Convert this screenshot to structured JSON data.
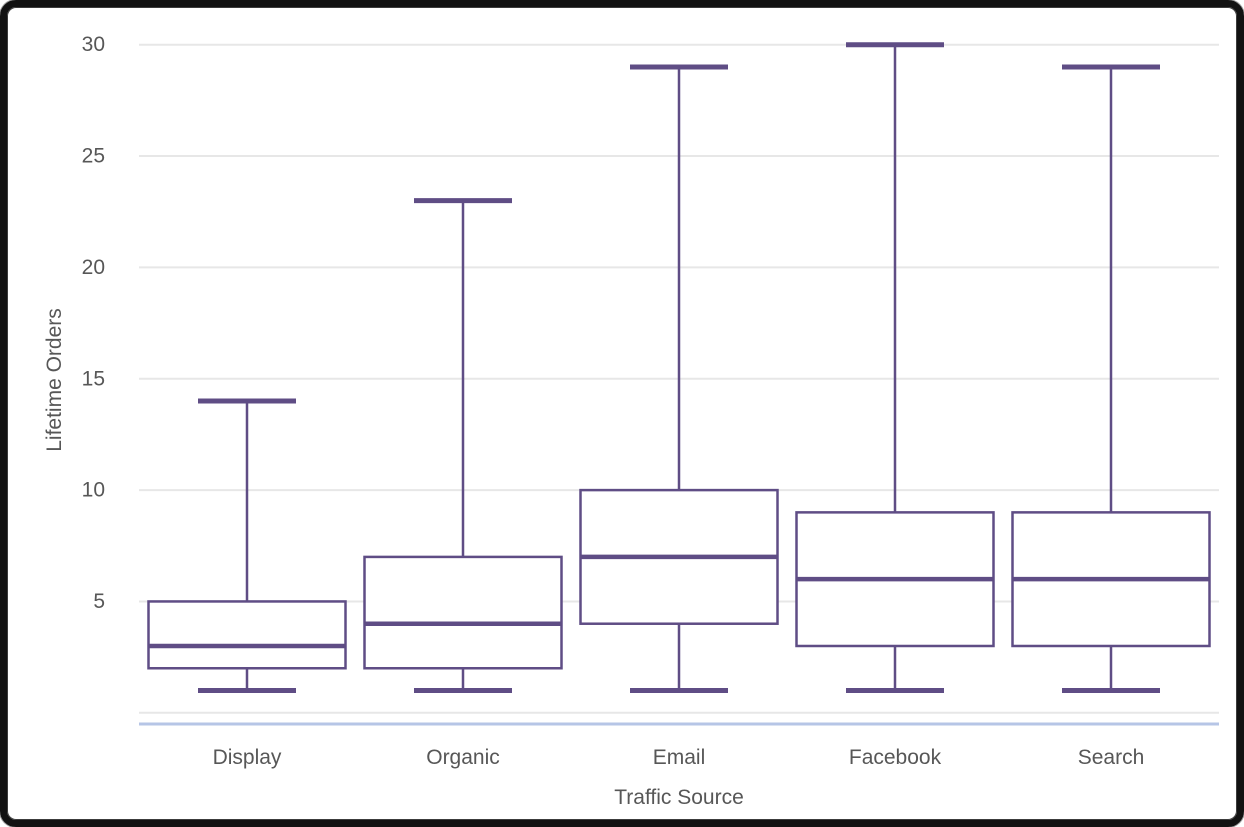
{
  "chart_data": {
    "type": "box",
    "title": "",
    "xlabel": "Traffic Source",
    "ylabel": "Lifetime Orders",
    "categories": [
      "Display",
      "Organic",
      "Email",
      "Facebook",
      "Search"
    ],
    "series": [
      {
        "name": "Display",
        "min": 1,
        "q1": 2,
        "median": 3,
        "q3": 5,
        "max": 14
      },
      {
        "name": "Organic",
        "min": 1,
        "q1": 2,
        "median": 4,
        "q3": 7,
        "max": 23
      },
      {
        "name": "Email",
        "min": 1,
        "q1": 4,
        "median": 7,
        "q3": 10,
        "max": 29
      },
      {
        "name": "Facebook",
        "min": 1,
        "q1": 3,
        "median": 6,
        "q3": 9,
        "max": 30
      },
      {
        "name": "Search",
        "min": 1,
        "q1": 3,
        "median": 6,
        "q3": 9,
        "max": 29
      }
    ],
    "yticks": [
      5,
      10,
      15,
      20,
      25,
      30
    ],
    "ylim": [
      0,
      30
    ],
    "grid": true,
    "legend": "none",
    "colors": {
      "box_stroke": "#5f4d85",
      "box_fill": "#ffffff",
      "gridline": "#e7e7e7",
      "baseline": "#b6c5e6",
      "text": "#575757",
      "frame": "#121212"
    }
  }
}
